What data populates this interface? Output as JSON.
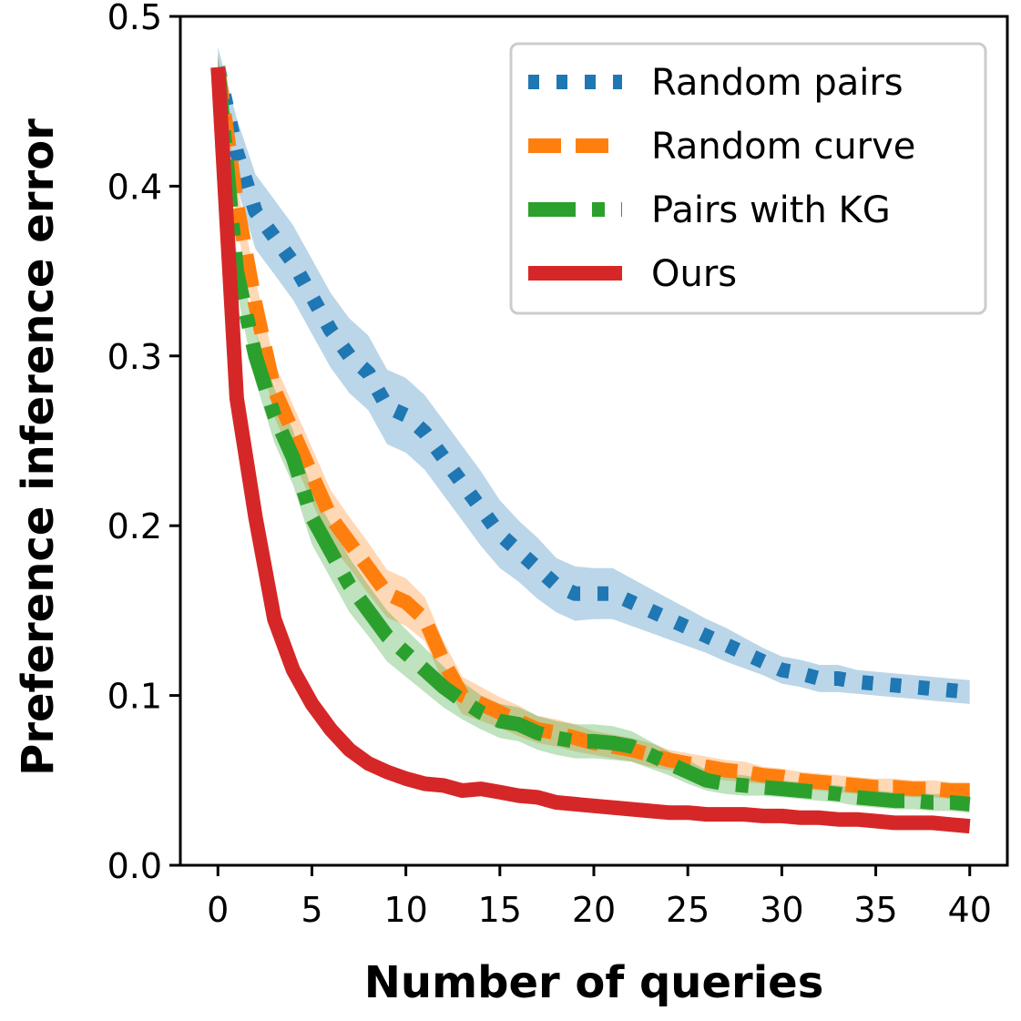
{
  "chart_data": {
    "type": "line",
    "title": "",
    "xlabel": "Number of queries",
    "ylabel": "Preference inference error",
    "xlim": [
      -2,
      42
    ],
    "ylim": [
      0.0,
      0.5
    ],
    "xticks": [
      0,
      5,
      10,
      15,
      20,
      25,
      30,
      35,
      40
    ],
    "xtick_labels": [
      "0",
      "5",
      "10",
      "15",
      "20",
      "25",
      "30",
      "35",
      "40"
    ],
    "yticks": [
      0.0,
      0.1,
      0.2,
      0.3,
      0.4,
      0.5
    ],
    "ytick_labels": [
      "0.0",
      "0.1",
      "0.2",
      "0.3",
      "0.4",
      "0.5"
    ],
    "grid": false,
    "legend_position": "top-right",
    "series": [
      {
        "name": "Random pairs",
        "color": "#1f77b4",
        "style": "dotted",
        "x": [
          0,
          1,
          2,
          3,
          4,
          5,
          6,
          7,
          8,
          9,
          10,
          11,
          12,
          13,
          14,
          15,
          16,
          17,
          18,
          19,
          20,
          21,
          22,
          23,
          24,
          25,
          26,
          27,
          28,
          29,
          30,
          31,
          32,
          33,
          34,
          35,
          36,
          37,
          38,
          39,
          40
        ],
        "values": [
          0.47,
          0.42,
          0.385,
          0.37,
          0.355,
          0.335,
          0.315,
          0.3,
          0.29,
          0.27,
          0.265,
          0.255,
          0.24,
          0.225,
          0.21,
          0.195,
          0.185,
          0.175,
          0.165,
          0.16,
          0.16,
          0.16,
          0.155,
          0.15,
          0.145,
          0.14,
          0.135,
          0.13,
          0.125,
          0.12,
          0.115,
          0.113,
          0.11,
          0.11,
          0.108,
          0.107,
          0.106,
          0.105,
          0.104,
          0.103,
          0.102
        ],
        "band": [
          0.012,
          0.02,
          0.022,
          0.022,
          0.022,
          0.022,
          0.022,
          0.022,
          0.022,
          0.022,
          0.022,
          0.022,
          0.022,
          0.022,
          0.022,
          0.02,
          0.018,
          0.018,
          0.016,
          0.016,
          0.015,
          0.015,
          0.014,
          0.013,
          0.012,
          0.011,
          0.01,
          0.01,
          0.009,
          0.008,
          0.008,
          0.008,
          0.008,
          0.008,
          0.007,
          0.007,
          0.007,
          0.007,
          0.007,
          0.007,
          0.007
        ]
      },
      {
        "name": "Random curve",
        "color": "#ff7f0e",
        "style": "dashed",
        "x": [
          0,
          1,
          2,
          3,
          4,
          5,
          6,
          7,
          8,
          9,
          10,
          11,
          12,
          13,
          14,
          15,
          16,
          17,
          18,
          19,
          20,
          21,
          22,
          23,
          24,
          25,
          26,
          27,
          28,
          29,
          30,
          31,
          32,
          33,
          34,
          35,
          36,
          37,
          38,
          39,
          40
        ],
        "values": [
          0.47,
          0.39,
          0.33,
          0.28,
          0.255,
          0.23,
          0.205,
          0.19,
          0.175,
          0.16,
          0.155,
          0.145,
          0.12,
          0.1,
          0.095,
          0.09,
          0.085,
          0.08,
          0.078,
          0.075,
          0.072,
          0.07,
          0.068,
          0.065,
          0.062,
          0.06,
          0.058,
          0.056,
          0.055,
          0.053,
          0.052,
          0.05,
          0.049,
          0.048,
          0.047,
          0.046,
          0.046,
          0.045,
          0.045,
          0.044,
          0.044
        ],
        "band": [
          0.008,
          0.012,
          0.015,
          0.016,
          0.016,
          0.016,
          0.016,
          0.015,
          0.015,
          0.014,
          0.014,
          0.013,
          0.012,
          0.011,
          0.01,
          0.009,
          0.009,
          0.008,
          0.008,
          0.008,
          0.007,
          0.007,
          0.007,
          0.007,
          0.006,
          0.006,
          0.006,
          0.006,
          0.006,
          0.005,
          0.005,
          0.005,
          0.005,
          0.005,
          0.005,
          0.005,
          0.005,
          0.005,
          0.005,
          0.005,
          0.005
        ]
      },
      {
        "name": "Pairs with KG",
        "color": "#2ca02c",
        "style": "dashdot",
        "x": [
          0,
          1,
          2,
          3,
          4,
          5,
          6,
          7,
          8,
          9,
          10,
          11,
          12,
          13,
          14,
          15,
          16,
          17,
          18,
          19,
          20,
          21,
          22,
          23,
          24,
          25,
          26,
          27,
          28,
          29,
          30,
          31,
          32,
          33,
          34,
          35,
          36,
          37,
          38,
          39,
          40
        ],
        "values": [
          0.47,
          0.35,
          0.3,
          0.265,
          0.24,
          0.205,
          0.185,
          0.165,
          0.15,
          0.135,
          0.125,
          0.115,
          0.105,
          0.097,
          0.09,
          0.085,
          0.083,
          0.078,
          0.075,
          0.073,
          0.073,
          0.072,
          0.07,
          0.065,
          0.06,
          0.055,
          0.05,
          0.048,
          0.047,
          0.046,
          0.045,
          0.044,
          0.043,
          0.042,
          0.04,
          0.039,
          0.038,
          0.038,
          0.037,
          0.037,
          0.036
        ],
        "band": [
          0.008,
          0.012,
          0.015,
          0.016,
          0.016,
          0.016,
          0.016,
          0.016,
          0.015,
          0.015,
          0.014,
          0.013,
          0.012,
          0.011,
          0.01,
          0.01,
          0.01,
          0.01,
          0.01,
          0.01,
          0.01,
          0.01,
          0.009,
          0.008,
          0.007,
          0.007,
          0.006,
          0.006,
          0.006,
          0.005,
          0.005,
          0.005,
          0.005,
          0.005,
          0.005,
          0.005,
          0.005,
          0.005,
          0.005,
          0.005,
          0.005
        ]
      },
      {
        "name": "Ours",
        "color": "#d62728",
        "style": "solid",
        "x": [
          0,
          1,
          2,
          3,
          4,
          5,
          6,
          7,
          8,
          9,
          10,
          11,
          12,
          13,
          14,
          15,
          16,
          17,
          18,
          19,
          20,
          21,
          22,
          23,
          24,
          25,
          26,
          27,
          28,
          29,
          30,
          31,
          32,
          33,
          34,
          35,
          36,
          37,
          38,
          39,
          40
        ],
        "values": [
          0.47,
          0.275,
          0.205,
          0.145,
          0.115,
          0.095,
          0.08,
          0.068,
          0.06,
          0.055,
          0.051,
          0.048,
          0.047,
          0.044,
          0.045,
          0.043,
          0.041,
          0.04,
          0.037,
          0.036,
          0.035,
          0.034,
          0.033,
          0.032,
          0.031,
          0.031,
          0.03,
          0.03,
          0.03,
          0.029,
          0.029,
          0.028,
          0.028,
          0.027,
          0.027,
          0.026,
          0.025,
          0.025,
          0.025,
          0.024,
          0.023
        ],
        "band": [
          0.005,
          0.004,
          0.004,
          0.003,
          0.003,
          0.003,
          0.003,
          0.003,
          0.002,
          0.002,
          0.002,
          0.002,
          0.002,
          0.002,
          0.002,
          0.002,
          0.002,
          0.002,
          0.002,
          0.002,
          0.002,
          0.002,
          0.002,
          0.002,
          0.002,
          0.002,
          0.002,
          0.002,
          0.002,
          0.002,
          0.002,
          0.002,
          0.002,
          0.002,
          0.002,
          0.002,
          0.002,
          0.002,
          0.002,
          0.002,
          0.002
        ]
      }
    ]
  }
}
